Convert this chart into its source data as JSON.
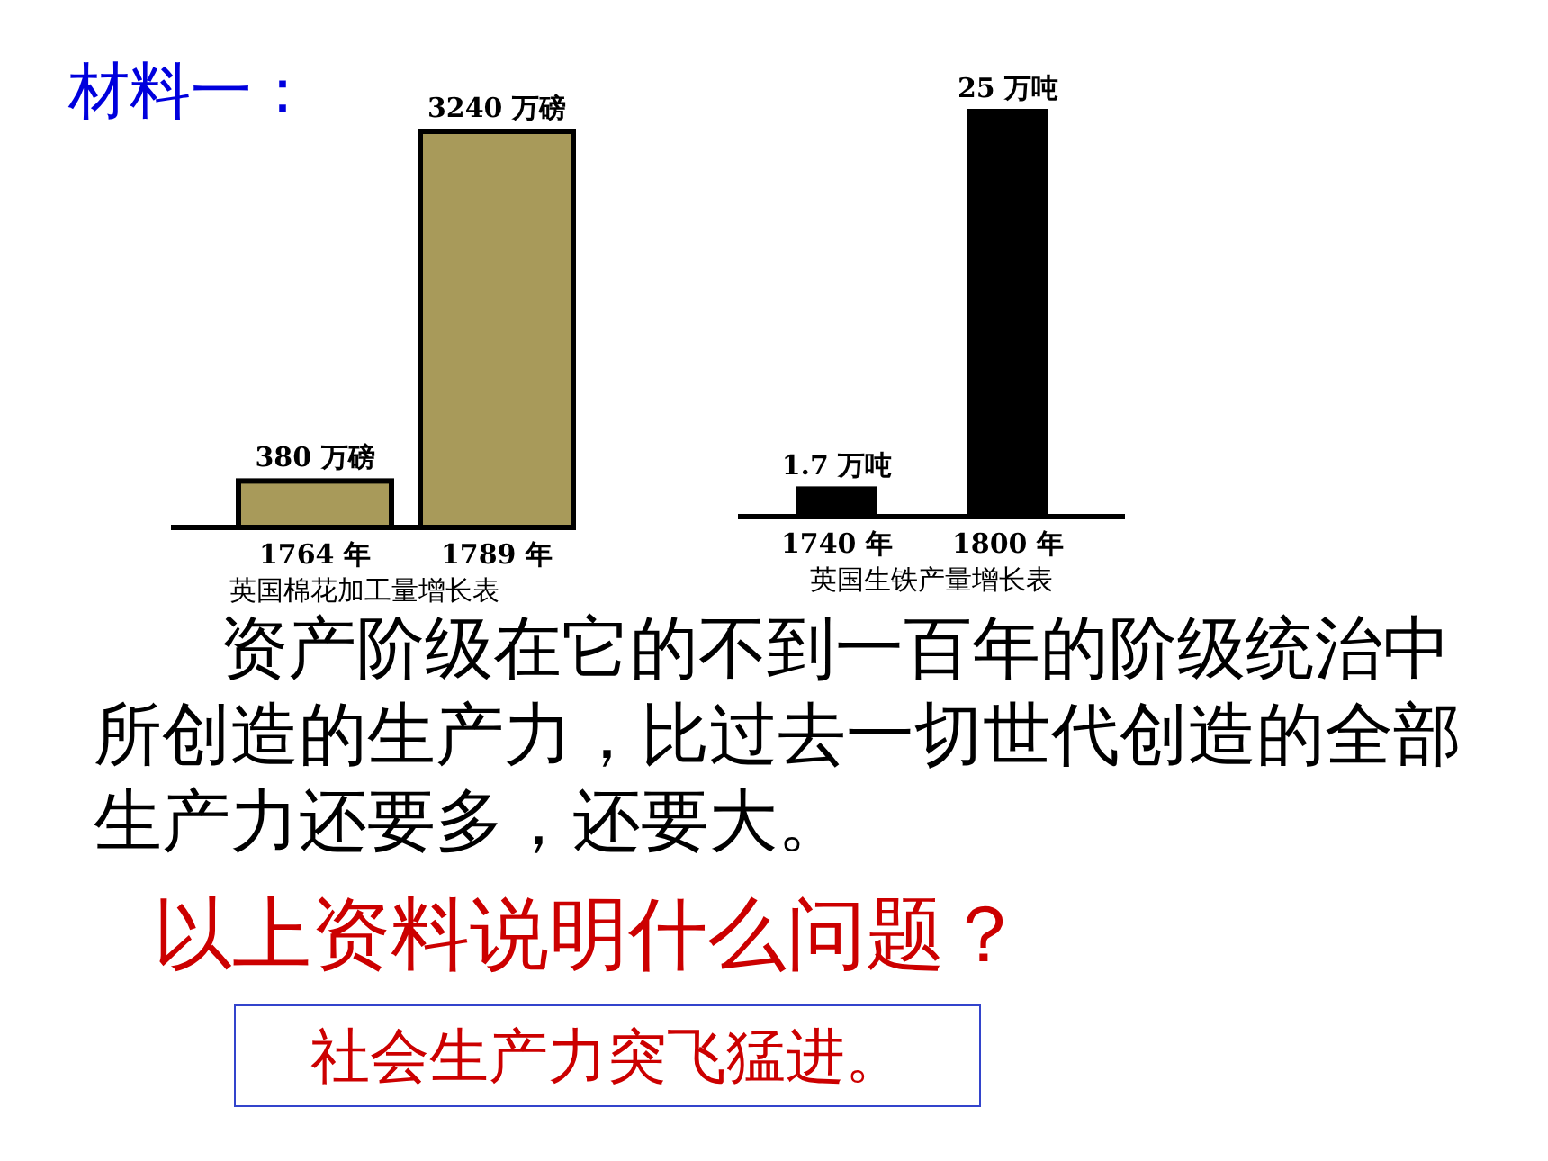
{
  "chart_data": [
    {
      "type": "bar",
      "title": "材料一：",
      "categories": [
        "1764 年",
        "1789 年"
      ],
      "values": [
        380,
        3240
      ],
      "value_labels": [
        "380 万磅",
        "3240 万磅"
      ],
      "color": "#a89a5a",
      "xlabel": "英国棉花加工量增长表"
    },
    {
      "type": "bar",
      "categories": [
        "1740 年",
        "1800 年"
      ],
      "values": [
        1.7,
        25
      ],
      "value_labels": [
        "1.7 万吨",
        "25 万吨"
      ],
      "color": "#000000",
      "xlabel": "英国生铁产量增长表"
    },
    {
      "type": "other",
      "annotations": [
        "资产阶级在它的不到一百年的阶级统治中所创造的生产力，比过去一切世代创造的全部生产力还要多，还要大。",
        "以上资料说明什么问题？",
        "社会生产力突飞猛进。"
      ]
    }
  ]
}
